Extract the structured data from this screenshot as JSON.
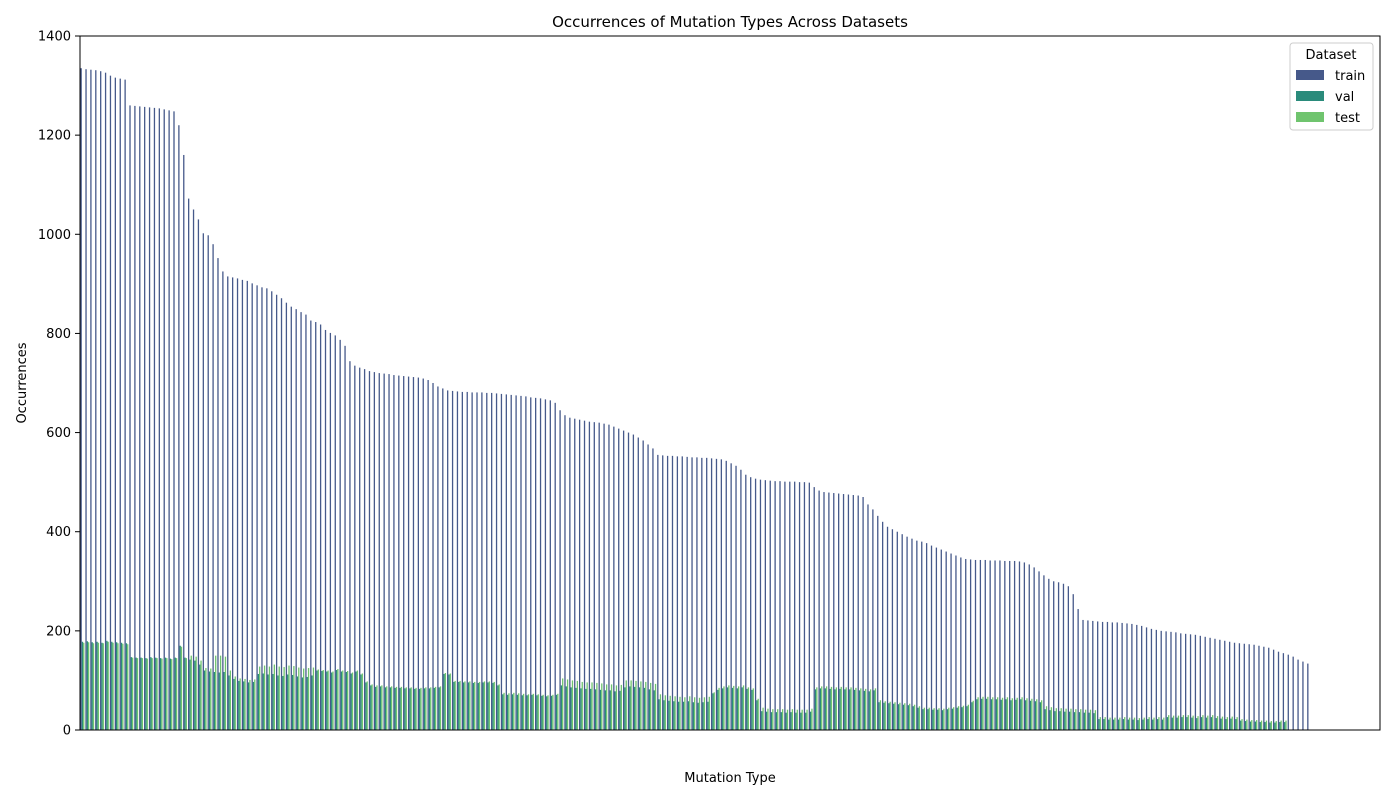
{
  "chart_data": {
    "type": "bar",
    "title": "Occurrences of Mutation Types Across Datasets",
    "xlabel": "Mutation Type",
    "ylabel": "Occurrences",
    "ylim": [
      0,
      1400
    ],
    "yticks": [
      0,
      200,
      400,
      600,
      800,
      1000,
      1200,
      1400
    ],
    "grid": false,
    "legend_position": "top-right",
    "legend_title": "Dataset",
    "series": [
      {
        "name": "train",
        "color": "#46598a",
        "values": [
          1335,
          1333,
          1332,
          1331,
          1329,
          1326,
          1320,
          1316,
          1314,
          1312,
          1260,
          1259,
          1258,
          1257,
          1256,
          1255,
          1254,
          1252,
          1250,
          1248,
          1220,
          1160,
          1072,
          1050,
          1030,
          1002,
          998,
          980,
          952,
          925,
          915,
          913,
          911,
          908,
          906,
          901,
          897,
          893,
          891,
          885,
          878,
          871,
          862,
          854,
          849,
          843,
          838,
          826,
          823,
          818,
          807,
          801,
          796,
          787,
          775,
          744,
          735,
          731,
          728,
          724,
          722,
          720,
          719,
          718,
          716,
          715,
          714,
          713,
          712,
          711,
          709,
          706,
          700,
          693,
          689,
          685,
          684,
          683,
          682,
          682,
          681,
          681,
          681,
          680,
          680,
          679,
          678,
          677,
          676,
          675,
          674,
          673,
          671,
          670,
          669,
          667,
          665,
          660,
          645,
          635,
          630,
          628,
          626,
          624,
          622,
          621,
          620,
          618,
          616,
          612,
          608,
          604,
          600,
          596,
          590,
          584,
          576,
          568,
          555,
          554,
          553,
          553,
          552,
          552,
          551,
          550,
          550,
          549,
          549,
          548,
          547,
          546,
          543,
          538,
          533,
          525,
          515,
          510,
          507,
          505,
          504,
          503,
          502,
          502,
          501,
          501,
          501,
          500,
          500,
          499,
          490,
          483,
          480,
          479,
          478,
          477,
          476,
          475,
          474,
          473,
          470,
          455,
          445,
          432,
          420,
          410,
          405,
          400,
          395,
          390,
          386,
          382,
          380,
          377,
          372,
          368,
          364,
          360,
          356,
          352,
          348,
          345,
          344,
          343,
          343,
          343,
          342,
          342,
          342,
          341,
          341,
          341,
          340,
          338,
          334,
          328,
          320,
          312,
          305,
          300,
          298,
          295,
          290,
          274,
          244,
          222,
          221,
          220,
          219,
          218,
          218,
          217,
          217,
          216,
          215,
          214,
          212,
          210,
          207,
          204,
          202,
          200,
          199,
          198,
          197,
          195,
          194,
          193,
          192,
          190,
          188,
          186,
          184,
          182,
          180,
          178,
          176,
          175,
          174,
          173,
          172,
          170,
          168,
          166,
          162,
          158,
          155,
          152,
          148,
          142,
          138,
          134,
          1,
          1,
          1,
          1,
          1,
          1,
          1,
          1,
          1,
          1,
          1,
          1,
          1,
          1
        ]
      },
      {
        "name": "val",
        "color": "#2a8b7b",
        "values": [
          178,
          179,
          177,
          178,
          176,
          180,
          178,
          177,
          176,
          175,
          147,
          146,
          146,
          145,
          147,
          146,
          145,
          146,
          144,
          146,
          170,
          146,
          142,
          140,
          132,
          120,
          118,
          117,
          116,
          117,
          110,
          103,
          99,
          98,
          96,
          97,
          113,
          114,
          112,
          113,
          110,
          109,
          112,
          111,
          108,
          106,
          107,
          110,
          120,
          119,
          118,
          116,
          121,
          118,
          117,
          114,
          118,
          112,
          96,
          90,
          87,
          88,
          86,
          86,
          85,
          85,
          84,
          84,
          83,
          83,
          84,
          84,
          85,
          86,
          113,
          112,
          97,
          97,
          96,
          96,
          95,
          95,
          96,
          96,
          95,
          90,
          72,
          71,
          72,
          71,
          70,
          70,
          71,
          70,
          69,
          68,
          69,
          71,
          90,
          88,
          86,
          85,
          84,
          83,
          83,
          82,
          81,
          80,
          80,
          78,
          79,
          86,
          88,
          87,
          86,
          85,
          82,
          80,
          62,
          60,
          59,
          58,
          57,
          57,
          58,
          56,
          55,
          56,
          57,
          74,
          81,
          84,
          86,
          85,
          84,
          86,
          83,
          81,
          60,
          38,
          37,
          36,
          36,
          36,
          35,
          36,
          35,
          35,
          35,
          37,
          82,
          84,
          84,
          83,
          82,
          83,
          82,
          82,
          81,
          80,
          79,
          78,
          80,
          56,
          55,
          54,
          53,
          52,
          51,
          50,
          48,
          45,
          42,
          42,
          41,
          41,
          40,
          42,
          43,
          45,
          46,
          48,
          56,
          62,
          63,
          63,
          62,
          62,
          61,
          62,
          60,
          61,
          62,
          60,
          59,
          58,
          56,
          42,
          40,
          38,
          38,
          37,
          37,
          36,
          36,
          35,
          35,
          34,
          22,
          22,
          21,
          21,
          21,
          22,
          21,
          21,
          20,
          21,
          22,
          21,
          22,
          21,
          26,
          25,
          25,
          26,
          26,
          25,
          24,
          26,
          25,
          26,
          24,
          23,
          22,
          23,
          22,
          19,
          18,
          17,
          17,
          16,
          16,
          15,
          15,
          16,
          16,
          0,
          0,
          0,
          0,
          0,
          0,
          0,
          0,
          0,
          0,
          0,
          0,
          0,
          0
        ]
      },
      {
        "name": "test",
        "color": "#6fc46e",
        "values": [
          176,
          177,
          175,
          176,
          175,
          178,
          176,
          175,
          174,
          173,
          146,
          145,
          145,
          144,
          145,
          145,
          144,
          145,
          143,
          145,
          168,
          145,
          150,
          148,
          140,
          125,
          124,
          150,
          150,
          148,
          120,
          108,
          104,
          103,
          101,
          102,
          128,
          130,
          128,
          132,
          128,
          127,
          130,
          129,
          126,
          124,
          125,
          126,
          122,
          121,
          120,
          118,
          123,
          120,
          119,
          116,
          120,
          114,
          98,
          92,
          90,
          90,
          88,
          88,
          87,
          87,
          86,
          86,
          85,
          85,
          86,
          86,
          87,
          88,
          115,
          114,
          99,
          99,
          98,
          98,
          97,
          97,
          98,
          98,
          97,
          92,
          75,
          74,
          75,
          74,
          73,
          72,
          73,
          72,
          71,
          70,
          71,
          73,
          104,
          102,
          100,
          99,
          97,
          96,
          96,
          95,
          94,
          92,
          92,
          90,
          91,
          100,
          100,
          99,
          98,
          97,
          95,
          93,
          72,
          70,
          69,
          68,
          67,
          66,
          68,
          66,
          65,
          66,
          67,
          76,
          85,
          88,
          90,
          89,
          88,
          90,
          86,
          84,
          63,
          45,
          43,
          42,
          42,
          42,
          41,
          42,
          41,
          41,
          41,
          43,
          86,
          88,
          88,
          87,
          86,
          87,
          86,
          86,
          85,
          84,
          83,
          82,
          84,
          60,
          58,
          57,
          56,
          55,
          54,
          53,
          51,
          48,
          45,
          45,
          44,
          44,
          43,
          45,
          46,
          48,
          49,
          51,
          59,
          66,
          67,
          67,
          66,
          66,
          65,
          66,
          64,
          65,
          66,
          64,
          63,
          62,
          60,
          48,
          46,
          44,
          44,
          43,
          43,
          42,
          42,
          41,
          41,
          40,
          26,
          26,
          25,
          25,
          25,
          26,
          25,
          25,
          24,
          25,
          26,
          25,
          26,
          25,
          30,
          29,
          29,
          30,
          30,
          29,
          28,
          30,
          29,
          30,
          28,
          27,
          26,
          27,
          26,
          22,
          21,
          20,
          20,
          19,
          19,
          18,
          18,
          19,
          19,
          0,
          0,
          0,
          0,
          0,
          0,
          0,
          0,
          0,
          0,
          0,
          0,
          0,
          0
        ]
      }
    ]
  }
}
